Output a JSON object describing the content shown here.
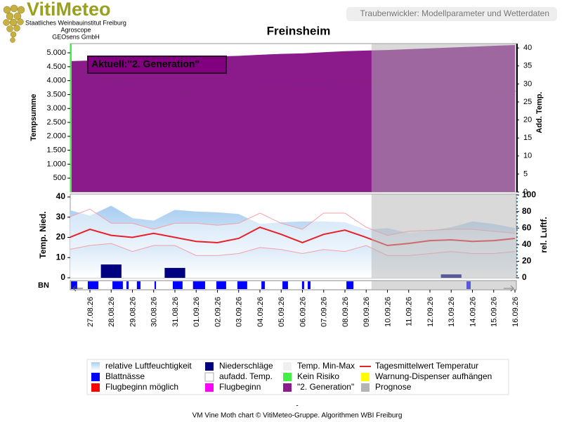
{
  "header": {
    "logo": "VitiMeteo",
    "org_lines": [
      "Staatliches Weinbauinstitut Freiburg",
      "Agroscope",
      "GEOsens GmbH"
    ],
    "tagline": "Traubenwickler: Modellparameter und Wetterdaten"
  },
  "chart_data": {
    "type": "vine-moth",
    "title": "Freinsheim",
    "categories": [
      null,
      "27.08.26",
      "28.08.26",
      "29.08.26",
      "30.08.26",
      "31.08.26",
      "01.09.26",
      "02.09.26",
      "03.09.26",
      "04.09.26",
      "05.09.26",
      "06.09.26",
      "07.09.26",
      "08.09.26",
      "09.09.26",
      "10.09.26",
      "11.09.26",
      "12.09.26",
      "13.09.26",
      "14.09.26",
      "15.09.26",
      "16.09.26"
    ],
    "top": {
      "ylabel": "Tempsumme",
      "ylim": [
        0,
        5330
      ],
      "yticks": [
        500,
        {
          "value": 1000,
          "label": "1.000"
        },
        {
          "value": 1500,
          "label": "1.500"
        },
        {
          "value": 2000,
          "label": "2.000"
        },
        {
          "value": 2500,
          "label": "2.500"
        },
        {
          "value": 3000,
          "label": "3.000"
        },
        {
          "value": 3500,
          "label": "3.500"
        },
        {
          "value": 4000,
          "label": "4.000"
        },
        {
          "value": 4500,
          "label": "4.500"
        },
        {
          "value": 5000,
          "label": "5.000"
        }
      ],
      "y2label": "Add. Temp.",
      "y2lim": [
        0,
        41.2
      ],
      "y2ticks": [
        0,
        5,
        10,
        15,
        20,
        25,
        30,
        35,
        40
      ],
      "series": [
        {
          "name": "\"2. Generation\"",
          "color": "#8b1a8b",
          "values": [
            4700,
            4720,
            4740,
            4770,
            4800,
            4830,
            4850,
            4870,
            4890,
            4930,
            4960,
            4980,
            5020,
            5060,
            5080,
            5100,
            5130,
            5160,
            5190,
            5220,
            5250,
            5280
          ]
        },
        {
          "name": "aufadd. Temp.",
          "color": "#7a2a7a",
          "axis": "y2",
          "values": [
            32,
            32,
            31,
            30,
            27,
            27,
            28,
            28,
            28,
            29,
            29,
            30,
            30,
            31,
            31,
            30,
            30,
            29,
            29,
            28,
            28,
            28
          ]
        }
      ],
      "annotation": "Aktuell:\"2. Generation\""
    },
    "bottom": {
      "ylabel": "Temp. Nied.",
      "ylim": [
        0,
        41.4
      ],
      "yticks": [
        0,
        10,
        20,
        30,
        40
      ],
      "y2label": "rel. Luftf.",
      "y2lim": [
        0,
        101
      ],
      "y2ticks": [
        0,
        20,
        40,
        60,
        80,
        100
      ],
      "strip_label": "BN",
      "series": [
        {
          "name": "relative Luftfeuchtigkeit",
          "color": "#a8cdf0",
          "axis": "y2",
          "values": [
            82,
            75,
            87,
            72,
            69,
            82,
            80,
            79,
            77,
            65,
            67,
            68,
            68,
            67,
            58,
            60,
            54,
            57,
            61,
            68,
            65,
            60
          ]
        },
        {
          "name": "Niederschläge",
          "color": "#000080",
          "values": [
            0,
            0,
            6.6,
            0,
            0,
            4.9,
            0,
            0,
            0,
            0,
            0,
            0,
            0,
            0,
            0,
            0,
            0,
            0,
            1.7,
            0,
            0,
            0
          ]
        },
        {
          "name": "Temp. Min-Max",
          "color": "#f0f0f0",
          "line_color": "#f4a0a8",
          "min": [
            14,
            16,
            17,
            13,
            16,
            16,
            11,
            11,
            12,
            15,
            14,
            12,
            14,
            13,
            16,
            11,
            11,
            12,
            13,
            12,
            12,
            13
          ],
          "max": [
            30,
            34,
            27,
            27,
            24,
            27,
            27,
            26,
            27,
            32,
            27,
            24,
            32,
            32,
            25,
            21,
            23,
            23.5,
            24,
            24,
            23,
            22
          ]
        },
        {
          "name": "Tagesmittelwert Temperatur",
          "color": "#e8202a",
          "values": [
            19.8,
            24,
            21,
            20,
            22,
            20,
            18,
            17.4,
            19.5,
            25,
            21.5,
            17.4,
            21.5,
            23.6,
            20,
            16,
            17,
            18.4,
            18.8,
            18,
            18.4,
            19.5
          ]
        },
        {
          "name": "Blattnässe",
          "color": "#0000ff",
          "values": [
            [
              0.11,
              0.4
            ],
            [
              0.9,
              1.4
            ],
            [
              2.06,
              2.55
            ],
            [
              2.72,
              2.82
            ],
            [
              3.21,
              3.38
            ],
            [
              4.04,
              4.11
            ],
            [
              4.9,
              5.36
            ],
            [
              5.85,
              6.42
            ],
            [
              6.95,
              7.41
            ],
            [
              7.94,
              8.4
            ],
            [
              9.07,
              9.23
            ],
            [
              10.06,
              10.32
            ],
            [
              10.98,
              11.08
            ],
            [
              11.25,
              11.38
            ],
            [
              13.07,
              13.4
            ],
            [
              18.72,
              18.92
            ]
          ]
        },
        {
          "name": "Prognose",
          "color": "#b4b4b4",
          "start": 14.25
        }
      ]
    },
    "legend_extra": [
      {
        "name": "Kein Risiko",
        "color": "#44ee44"
      },
      {
        "name": "Warnung-Dispenser aufhängen",
        "color": "#ffff00"
      },
      {
        "name": "Flugbeginn möglich",
        "color": "#ff0000"
      },
      {
        "name": "Flugbeginn",
        "color": "#ff00ff"
      }
    ]
  },
  "footer": {
    "dash": "-",
    "credit": "VM Vine Moth chart © VitiMeteo-Gruppe. Algorithmen WBI Freiburg"
  }
}
